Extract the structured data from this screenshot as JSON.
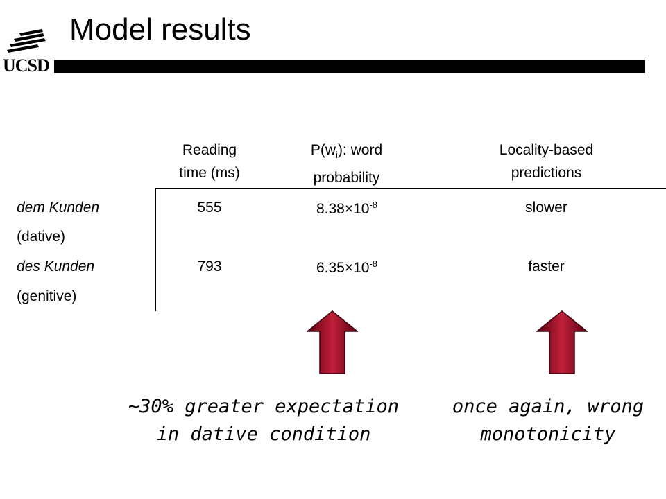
{
  "logo": {
    "text": "UCSD",
    "icon": "ucsd-wave-logo"
  },
  "title": "Model results",
  "headers": {
    "reading_time_line1": "Reading",
    "reading_time_line2": "time (ms)",
    "prob_pre": "P(w",
    "prob_sub": "i",
    "prob_post": "): word",
    "prob_line2": "probability",
    "locality_line1": "Locality-based",
    "locality_line2": "predictions"
  },
  "rows": [
    {
      "phrase": "dem Kunden",
      "case": "(dative)",
      "reading_time": "555",
      "prob_base": "8.38×10",
      "prob_exp": "-8",
      "prediction": "slower"
    },
    {
      "phrase": "des Kunden",
      "case": "(genitive)",
      "reading_time": "793",
      "prob_base": "6.35×10",
      "prob_exp": "-8",
      "prediction": "faster"
    }
  ],
  "notes": {
    "left_line1": "~30% greater expectation",
    "left_line2": "in dative condition",
    "right_line1": "once again, wrong",
    "right_line2": "monotonicity"
  },
  "colors": {
    "arrow_dark": "#5a0010",
    "arrow_light": "#c0203a",
    "bar": "#000000"
  }
}
